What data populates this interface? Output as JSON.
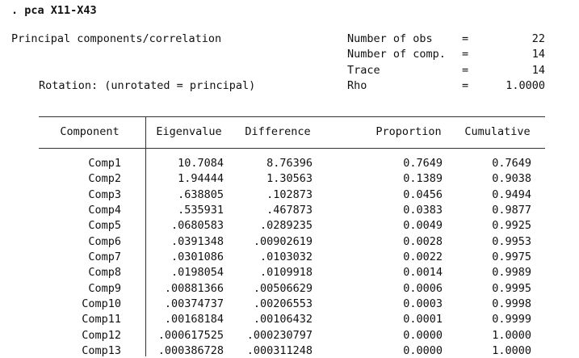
{
  "command": ". pca X11-X43",
  "title": "Principal components/correlation",
  "rotation": "Rotation: (unrotated = principal)",
  "stats": [
    {
      "label": "Number of obs",
      "eq": "=",
      "value": "22"
    },
    {
      "label": "Number of comp.",
      "eq": "=",
      "value": "14"
    },
    {
      "label": "Trace",
      "eq": "=",
      "value": "14"
    },
    {
      "label": "Rho",
      "eq": "=",
      "value": "1.0000"
    }
  ],
  "table": {
    "columns": [
      "Component",
      "Eigenvalue",
      "Difference",
      "Proportion",
      "Cumulative"
    ],
    "rows": [
      [
        "Comp1",
        "10.7084",
        "8.76396",
        "0.7649",
        "0.7649"
      ],
      [
        "Comp2",
        "1.94444",
        "1.30563",
        "0.1389",
        "0.9038"
      ],
      [
        "Comp3",
        ".638805",
        ".102873",
        "0.0456",
        "0.9494"
      ],
      [
        "Comp4",
        ".535931",
        ".467873",
        "0.0383",
        "0.9877"
      ],
      [
        "Comp5",
        ".0680583",
        ".0289235",
        "0.0049",
        "0.9925"
      ],
      [
        "Comp6",
        ".0391348",
        ".00902619",
        "0.0028",
        "0.9953"
      ],
      [
        "Comp7",
        ".0301086",
        ".0103032",
        "0.0022",
        "0.9975"
      ],
      [
        "Comp8",
        ".0198054",
        ".0109918",
        "0.0014",
        "0.9989"
      ],
      [
        "Comp9",
        ".00881366",
        ".00506629",
        "0.0006",
        "0.9995"
      ],
      [
        "Comp10",
        ".00374737",
        ".00206553",
        "0.0003",
        "0.9998"
      ],
      [
        "Comp11",
        ".00168184",
        ".00106432",
        "0.0001",
        "0.9999"
      ],
      [
        "Comp12",
        ".000617525",
        ".000230797",
        "0.0000",
        "1.0000"
      ],
      [
        "Comp13",
        ".000386728",
        ".000311248",
        "0.0000",
        "1.0000"
      ]
    ]
  }
}
